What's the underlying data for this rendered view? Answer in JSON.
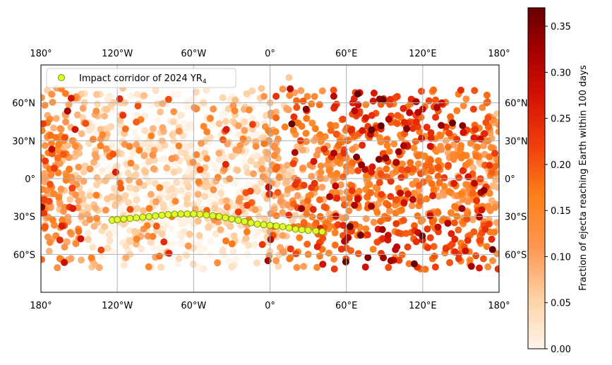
{
  "chart_data": {
    "type": "scatter",
    "projection": "plate-carree",
    "xlim": [
      -180,
      180
    ],
    "ylim": [
      -90,
      90
    ],
    "grid": true,
    "x_ticks": [
      {
        "value": -180,
        "label": "180°"
      },
      {
        "value": -120,
        "label": "120°W"
      },
      {
        "value": -60,
        "label": "60°W"
      },
      {
        "value": 0,
        "label": "0°"
      },
      {
        "value": 60,
        "label": "60°E"
      },
      {
        "value": 120,
        "label": "120°E"
      },
      {
        "value": 180,
        "label": "180°"
      }
    ],
    "y_ticks": [
      {
        "value": 60,
        "label": "60°N"
      },
      {
        "value": 30,
        "label": "30°N"
      },
      {
        "value": 0,
        "label": "0°"
      },
      {
        "value": -30,
        "label": "30°S"
      },
      {
        "value": -60,
        "label": "60°S"
      }
    ],
    "legend": {
      "placement": "top-left",
      "label_main": "Impact corridor of 2024 YR",
      "label_sub": "4",
      "marker_fill": "#dfff2a",
      "marker_edge": "#7f8f00"
    },
    "colorbar": {
      "label": "Fraction of ejecta reaching Earth within 100 days",
      "min": 0.0,
      "max": 0.37,
      "cmap": "OrRd-hot",
      "ticks": [
        {
          "value": 0.0,
          "label": "0.00"
        },
        {
          "value": 0.05,
          "label": "0.05"
        },
        {
          "value": 0.1,
          "label": "0.10"
        },
        {
          "value": 0.15,
          "label": "0.15"
        },
        {
          "value": 0.2,
          "label": "0.20"
        },
        {
          "value": 0.25,
          "label": "0.25"
        },
        {
          "value": 0.3,
          "label": "0.30"
        },
        {
          "value": 0.35,
          "label": "0.35"
        }
      ]
    },
    "impact_corridor": [
      [
        -124,
        -33
      ],
      [
        -120,
        -32.5
      ],
      [
        -115,
        -32
      ],
      [
        -110,
        -31.5
      ],
      [
        -105,
        -31
      ],
      [
        -100,
        -30.5
      ],
      [
        -95,
        -30
      ],
      [
        -90,
        -29.5
      ],
      [
        -85,
        -29
      ],
      [
        -80,
        -28.5
      ],
      [
        -75,
        -28.2
      ],
      [
        -70,
        -28
      ],
      [
        -65,
        -28
      ],
      [
        -60,
        -28
      ],
      [
        -55,
        -28.3
      ],
      [
        -50,
        -28.8
      ],
      [
        -45,
        -29.3
      ],
      [
        -40,
        -30
      ],
      [
        -35,
        -31
      ],
      [
        -30,
        -32
      ],
      [
        -25,
        -33
      ],
      [
        -20,
        -34
      ],
      [
        -15,
        -35
      ],
      [
        -10,
        -36
      ],
      [
        -5,
        -36.5
      ],
      [
        0,
        -37
      ],
      [
        5,
        -37.5
      ],
      [
        10,
        -38
      ],
      [
        15,
        -39
      ],
      [
        20,
        -40
      ],
      [
        25,
        -40.5
      ],
      [
        30,
        -41
      ],
      [
        36,
        -41.5
      ],
      [
        41,
        -42
      ]
    ],
    "ejecta_field_points": [
      [
        -175,
        70,
        0.05
      ],
      [
        -170,
        40,
        0.08
      ],
      [
        -168,
        10,
        0.11
      ],
      [
        -165,
        -20,
        0.1
      ],
      [
        -160,
        -50,
        0.09
      ],
      [
        -155,
        75,
        0.04
      ],
      [
        -150,
        20,
        0.07
      ],
      [
        -145,
        -35,
        0.08
      ],
      [
        -140,
        -70,
        0.06
      ],
      [
        -130,
        55,
        0.04
      ],
      [
        -120,
        10,
        0.03
      ],
      [
        -110,
        -60,
        0.05
      ],
      [
        -100,
        65,
        0.03
      ],
      [
        -90,
        25,
        0.02
      ],
      [
        -80,
        -15,
        0.02
      ],
      [
        -70,
        50,
        0.02
      ],
      [
        -60,
        -55,
        0.03
      ],
      [
        -50,
        70,
        0.02
      ],
      [
        -40,
        15,
        0.02
      ],
      [
        -30,
        -70,
        0.03
      ],
      [
        -20,
        45,
        0.04
      ],
      [
        -10,
        -10,
        0.05
      ],
      [
        0,
        60,
        0.07
      ],
      [
        5,
        20,
        0.08
      ],
      [
        10,
        -45,
        0.1
      ],
      [
        15,
        80,
        0.06
      ],
      [
        20,
        35,
        0.12
      ],
      [
        25,
        -5,
        0.12
      ],
      [
        30,
        -60,
        0.15
      ],
      [
        35,
        65,
        0.14
      ],
      [
        40,
        10,
        0.13
      ],
      [
        45,
        -35,
        0.17
      ],
      [
        50,
        70,
        0.2
      ],
      [
        55,
        30,
        0.16
      ],
      [
        60,
        -55,
        0.2
      ],
      [
        65,
        60,
        0.26
      ],
      [
        70,
        -10,
        0.15
      ],
      [
        75,
        -70,
        0.28
      ],
      [
        80,
        50,
        0.24
      ],
      [
        85,
        -40,
        0.26
      ],
      [
        90,
        20,
        0.17
      ],
      [
        95,
        -65,
        0.32
      ],
      [
        100,
        65,
        0.22
      ],
      [
        105,
        -20,
        0.16
      ],
      [
        110,
        45,
        0.19
      ],
      [
        115,
        -50,
        0.24
      ],
      [
        120,
        55,
        0.3
      ],
      [
        125,
        0,
        0.16
      ],
      [
        130,
        -70,
        0.22
      ],
      [
        135,
        60,
        0.28
      ],
      [
        140,
        25,
        0.18
      ],
      [
        145,
        -35,
        0.2
      ],
      [
        150,
        70,
        0.24
      ],
      [
        155,
        -5,
        0.15
      ],
      [
        160,
        55,
        0.22
      ],
      [
        165,
        -45,
        0.18
      ],
      [
        170,
        30,
        0.14
      ],
      [
        175,
        -65,
        0.12
      ]
    ]
  }
}
